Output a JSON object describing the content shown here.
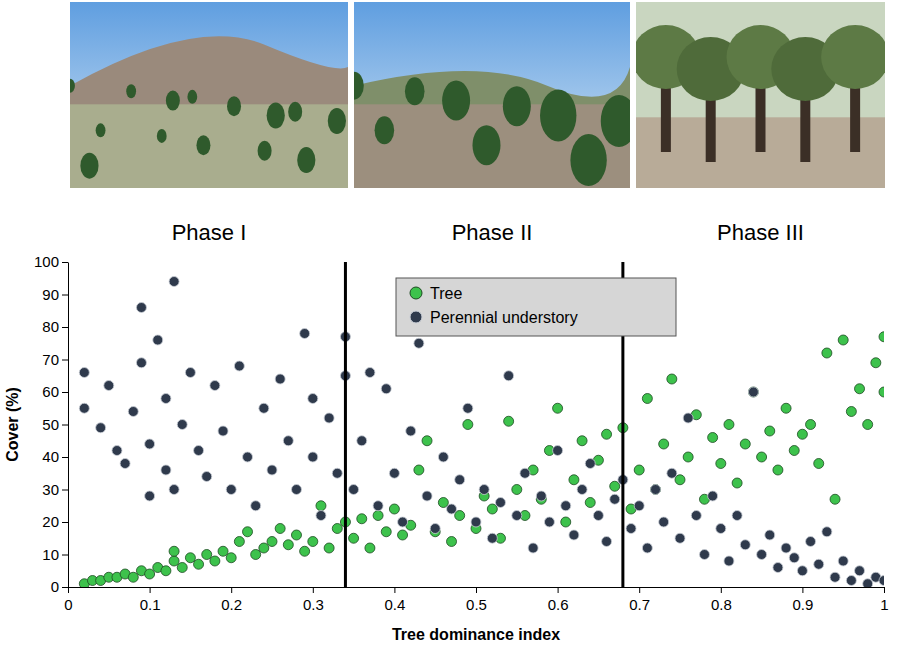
{
  "chart_data": {
    "type": "scatter",
    "x_label": "Tree dominance index",
    "y_label": "Cover (%)",
    "phases": [
      "Phase I",
      "Phase II",
      "Phase III"
    ],
    "boundaries": [
      0.34,
      0.68
    ],
    "xlim": [
      0,
      1
    ],
    "xticks": [
      0,
      0.1,
      0.2,
      0.3,
      0.4,
      0.5,
      0.6,
      0.7,
      0.8,
      0.9,
      1
    ],
    "ylim": [
      0,
      100
    ],
    "yticks": [
      0,
      10,
      20,
      30,
      40,
      50,
      60,
      70,
      80,
      90,
      100
    ],
    "grid": false,
    "legend": "top",
    "series": [
      {
        "name": "Tree",
        "color": "#3dc24c",
        "marker": "circle",
        "x": [
          0.02,
          0.03,
          0.04,
          0.05,
          0.06,
          0.07,
          0.08,
          0.09,
          0.1,
          0.11,
          0.12,
          0.13,
          0.13,
          0.14,
          0.15,
          0.16,
          0.17,
          0.18,
          0.19,
          0.2,
          0.21,
          0.22,
          0.23,
          0.24,
          0.25,
          0.26,
          0.27,
          0.28,
          0.29,
          0.3,
          0.31,
          0.32,
          0.33,
          0.34,
          0.35,
          0.36,
          0.37,
          0.38,
          0.39,
          0.4,
          0.41,
          0.42,
          0.43,
          0.44,
          0.45,
          0.46,
          0.47,
          0.48,
          0.49,
          0.5,
          0.51,
          0.52,
          0.53,
          0.54,
          0.55,
          0.56,
          0.57,
          0.58,
          0.59,
          0.6,
          0.61,
          0.62,
          0.63,
          0.64,
          0.65,
          0.66,
          0.67,
          0.68,
          0.69,
          0.7,
          0.71,
          0.72,
          0.73,
          0.74,
          0.75,
          0.76,
          0.77,
          0.78,
          0.79,
          0.8,
          0.81,
          0.82,
          0.83,
          0.84,
          0.85,
          0.86,
          0.87,
          0.88,
          0.89,
          0.9,
          0.91,
          0.92,
          0.93,
          0.94,
          0.95,
          0.96,
          0.97,
          0.98,
          0.99,
          1,
          1
        ],
        "values": [
          1,
          2,
          2,
          3,
          3,
          4,
          3,
          5,
          4,
          6,
          5,
          8,
          11,
          6,
          9,
          7,
          10,
          8,
          11,
          9,
          14,
          17,
          10,
          12,
          14,
          18,
          13,
          16,
          11,
          14,
          25,
          12,
          18,
          20,
          15,
          21,
          12,
          22,
          17,
          24,
          16,
          19,
          36,
          45,
          17,
          26,
          14,
          22,
          50,
          18,
          28,
          24,
          15,
          51,
          30,
          22,
          36,
          27,
          42,
          55,
          20,
          33,
          45,
          26,
          39,
          47,
          31,
          49,
          24,
          36,
          58,
          30,
          44,
          64,
          33,
          40,
          53,
          27,
          46,
          38,
          50,
          32,
          44,
          60,
          40,
          48,
          36,
          55,
          42,
          47,
          50,
          38,
          72,
          27,
          76,
          54,
          61,
          50,
          69,
          77,
          60
        ]
      },
      {
        "name": "Perennial understory",
        "color": "#2f3a4c",
        "marker": "circle",
        "x": [
          0.02,
          0.02,
          0.04,
          0.05,
          0.06,
          0.07,
          0.08,
          0.09,
          0.09,
          0.1,
          0.1,
          0.11,
          0.12,
          0.12,
          0.13,
          0.13,
          0.14,
          0.15,
          0.16,
          0.17,
          0.18,
          0.19,
          0.2,
          0.21,
          0.22,
          0.23,
          0.24,
          0.25,
          0.26,
          0.27,
          0.28,
          0.29,
          0.3,
          0.3,
          0.31,
          0.32,
          0.33,
          0.34,
          0.34,
          0.35,
          0.36,
          0.37,
          0.38,
          0.39,
          0.4,
          0.41,
          0.42,
          0.43,
          0.44,
          0.45,
          0.46,
          0.47,
          0.48,
          0.49,
          0.5,
          0.51,
          0.52,
          0.53,
          0.54,
          0.55,
          0.56,
          0.57,
          0.58,
          0.59,
          0.6,
          0.61,
          0.62,
          0.63,
          0.64,
          0.65,
          0.66,
          0.67,
          0.68,
          0.69,
          0.7,
          0.71,
          0.72,
          0.73,
          0.74,
          0.75,
          0.76,
          0.77,
          0.78,
          0.79,
          0.8,
          0.81,
          0.82,
          0.83,
          0.84,
          0.85,
          0.86,
          0.87,
          0.88,
          0.89,
          0.9,
          0.91,
          0.92,
          0.93,
          0.94,
          0.95,
          0.96,
          0.97,
          0.98,
          0.99,
          1
        ],
        "values": [
          55,
          66,
          49,
          62,
          42,
          38,
          54,
          86,
          69,
          44,
          28,
          76,
          58,
          36,
          94,
          30,
          50,
          66,
          42,
          34,
          62,
          48,
          30,
          68,
          40,
          25,
          55,
          36,
          64,
          45,
          30,
          78,
          40,
          58,
          22,
          52,
          35,
          65,
          77,
          30,
          45,
          66,
          25,
          61,
          35,
          20,
          48,
          75,
          28,
          18,
          40,
          24,
          33,
          55,
          20,
          30,
          15,
          26,
          65,
          22,
          35,
          12,
          28,
          20,
          42,
          25,
          16,
          30,
          38,
          22,
          14,
          27,
          33,
          18,
          25,
          12,
          30,
          20,
          35,
          15,
          52,
          22,
          10,
          28,
          18,
          8,
          22,
          13,
          60,
          10,
          16,
          6,
          12,
          9,
          5,
          14,
          7,
          17,
          3,
          8,
          2,
          5,
          1,
          3,
          2
        ]
      }
    ]
  }
}
